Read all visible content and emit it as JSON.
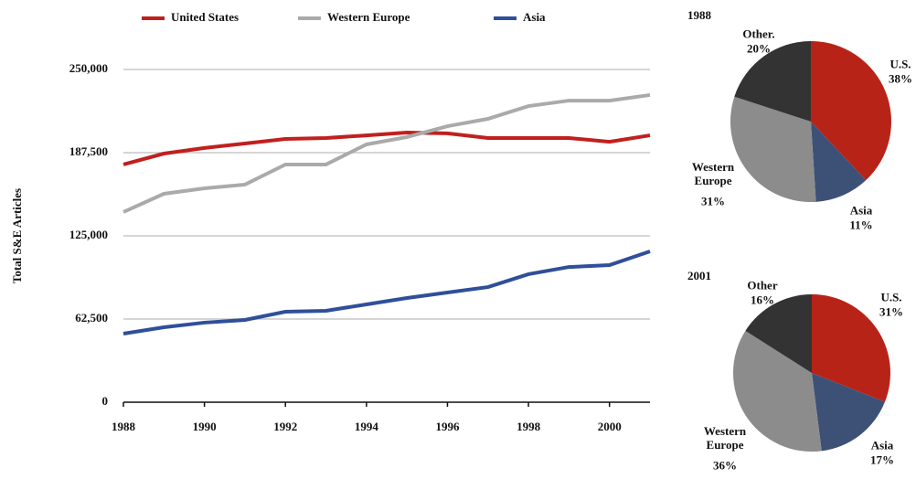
{
  "chart_data": [
    {
      "type": "line",
      "ylabel": "Total S&E Articles",
      "x": [
        1988,
        1989,
        1990,
        1991,
        1992,
        1993,
        1994,
        1995,
        1996,
        1997,
        1998,
        1999,
        2000,
        2001
      ],
      "series": [
        {
          "name": "United States",
          "color": "#c0201e",
          "values": [
            178600,
            186800,
            191000,
            194400,
            197800,
            198500,
            200500,
            202600,
            202000,
            198500,
            198500,
            198500,
            195700,
            200500
          ]
        },
        {
          "name": "Western Europe",
          "color": "#a9aba9",
          "values": [
            142900,
            156600,
            160700,
            163500,
            178600,
            178600,
            193700,
            199200,
            207400,
            212900,
            222500,
            226600,
            226600,
            230800
          ]
        },
        {
          "name": "Asia",
          "color": "#2f4f9a",
          "values": [
            51500,
            56300,
            59800,
            61800,
            68000,
            68700,
            73500,
            78300,
            82400,
            86500,
            96200,
            101600,
            103000,
            113300
          ]
        }
      ],
      "xlim": [
        1988,
        2001
      ],
      "xticks": [
        1988,
        1990,
        1992,
        1994,
        1996,
        1998,
        2000
      ],
      "ylim": [
        0,
        250000
      ],
      "yticks": [
        0,
        {
          "value": 62500,
          "label": "62,500"
        },
        {
          "value": 125000,
          "label": "125,000"
        },
        {
          "value": 187500,
          "label": "187,500"
        },
        {
          "value": 250000,
          "label": "250,000"
        }
      ],
      "grid": true,
      "legend": "top"
    },
    {
      "type": "pie",
      "title": "1988",
      "categories": [
        "U.S.",
        "Asia",
        "Western Europe",
        "Other."
      ],
      "values": [
        38,
        11,
        31,
        20
      ],
      "value_labels": [
        "38%",
        "11%",
        "31%",
        "20%"
      ],
      "colors": [
        "#b82318",
        "#3d5177",
        "#8c8c8c",
        "#333333"
      ]
    },
    {
      "type": "pie",
      "title": "2001",
      "categories": [
        "U.S.",
        "Asia",
        "Western Europe",
        "Other"
      ],
      "values": [
        31,
        17,
        36,
        16
      ],
      "value_labels": [
        "31%",
        "17%",
        "36%",
        "16%"
      ],
      "colors": [
        "#b82318",
        "#3d5177",
        "#8c8c8c",
        "#333333"
      ]
    }
  ]
}
